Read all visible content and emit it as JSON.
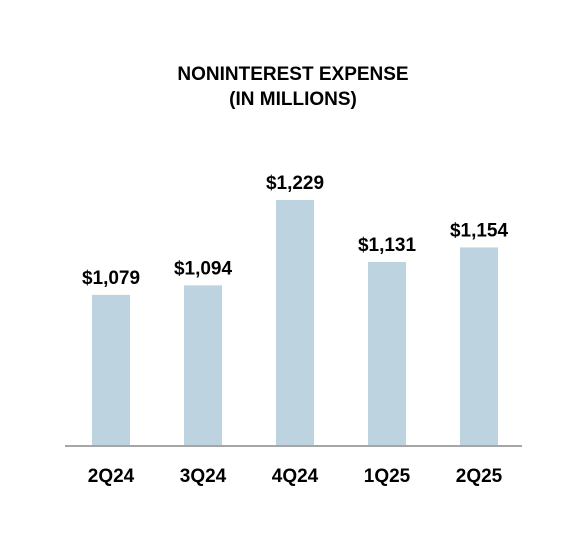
{
  "chart_data": {
    "type": "bar",
    "title": "NONINTEREST EXPENSE",
    "subtitle": "(IN MILLIONS)",
    "categories": [
      "2Q24",
      "3Q24",
      "4Q24",
      "1Q25",
      "2Q25"
    ],
    "values": [
      1079,
      1094,
      1229,
      1131,
      1154
    ],
    "data_labels": [
      "$1,079",
      "$1,094",
      "$1,229",
      "$1,131",
      "$1,154"
    ],
    "xlabel": "",
    "ylabel": "",
    "grid": false,
    "legend": "none",
    "colors": {
      "bar": "#bdd3df",
      "axis": "#a6a6a6",
      "text": "#000000"
    }
  }
}
